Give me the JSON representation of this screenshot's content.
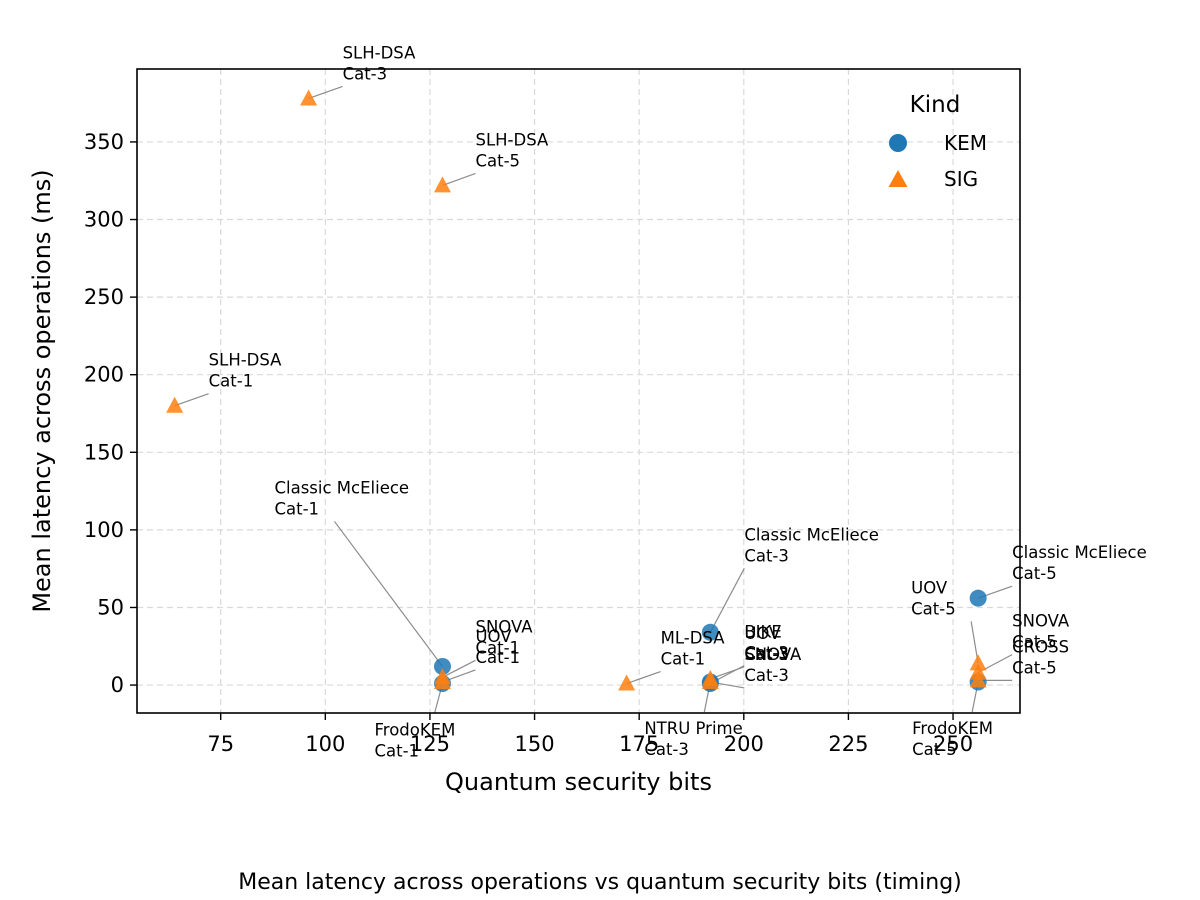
{
  "chart_data": {
    "type": "scatter",
    "title": "",
    "caption": "Mean latency across operations vs quantum security bits (timing)",
    "xlabel": "Quantum security bits",
    "ylabel": "Mean latency across operations (ms)",
    "xlim": [
      55,
      266
    ],
    "ylim": [
      -18,
      397
    ],
    "xticks": [
      75,
      100,
      125,
      150,
      175,
      200,
      225,
      250
    ],
    "yticks": [
      0,
      50,
      100,
      150,
      200,
      250,
      300,
      350
    ],
    "grid": true,
    "legend": {
      "title": "Kind",
      "placement": "top-right",
      "entries": [
        "KEM",
        "SIG"
      ]
    },
    "colors": {
      "KEM": "#1f77b4",
      "SIG": "#ff7f0e"
    },
    "series": [
      {
        "name": "KEM",
        "marker": "circle",
        "points": [
          {
            "x": 128,
            "y": 12,
            "label": "Classic McEliece\nCat-1"
          },
          {
            "x": 128,
            "y": 1,
            "label": "FrodoKEM\nCat-1"
          },
          {
            "x": 192,
            "y": 34,
            "label": "Classic McEliece\nCat-3"
          },
          {
            "x": 192,
            "y": 2,
            "label": "NTRU Prime\nCat-3"
          },
          {
            "x": 192,
            "y": 1,
            "label": "BIKE\nCat-3"
          },
          {
            "x": 256,
            "y": 56,
            "label": "Classic McEliece\nCat-5"
          },
          {
            "x": 256,
            "y": 2,
            "label": "FrodoKEM\nCat-5"
          }
        ]
      },
      {
        "name": "SIG",
        "marker": "triangle",
        "points": [
          {
            "x": 64,
            "y": 180,
            "label": "SLH-DSA\nCat-1"
          },
          {
            "x": 96,
            "y": 378,
            "label": "SLH-DSA\nCat-3"
          },
          {
            "x": 128,
            "y": 322,
            "label": "SLH-DSA\nCat-5"
          },
          {
            "x": 128,
            "y": 5,
            "label": "SNOVA\nCat-1"
          },
          {
            "x": 128,
            "y": 2,
            "label": "UOV\nCat-1"
          },
          {
            "x": 172,
            "y": 1,
            "label": "ML-DSA\nCat-1"
          },
          {
            "x": 192,
            "y": 4,
            "label": "UOV\nCat-3"
          },
          {
            "x": 192,
            "y": 2,
            "label": "SNOVA\nCat-3"
          },
          {
            "x": 256,
            "y": 14,
            "label": "UOV\nCat-5"
          },
          {
            "x": 256,
            "y": 8,
            "label": "SNOVA\nCat-5"
          },
          {
            "x": 256,
            "y": 3,
            "label": "CROSS\nCat-5"
          }
        ]
      }
    ]
  }
}
